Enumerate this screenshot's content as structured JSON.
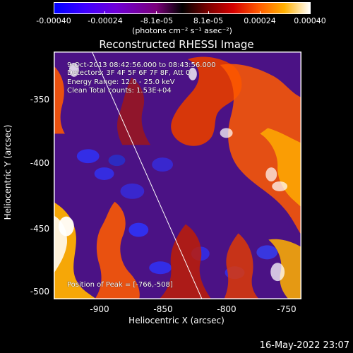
{
  "colorbar": {
    "labels": [
      "-0.00040",
      "-0.00024",
      "-8.1e-05",
      "8.1e-05",
      "0.00024",
      "0.00040"
    ],
    "units": "(photons cm⁻² s⁻¹ asec⁻²)"
  },
  "plot": {
    "title": "Reconstructed RHESSI Image",
    "time": "9-Oct-2013 08:42:56.000 to 08:43:56.000",
    "detectors": "Detectors: 3F 4F 5F 6F 7F 8F, Att 0",
    "energy": "Energy Range: 12.0 - 25.0 keV",
    "clean": "Clean    Total counts: 1.53E+04",
    "peak": "Position of Peak = [-766,-508]"
  },
  "axes": {
    "x_label": "Heliocentric X (arcsec)",
    "y_label": "Heliocentric Y (arcsec)",
    "x_ticks": [
      "-900",
      "-850",
      "-800",
      "-750"
    ],
    "y_ticks": [
      "-350",
      "-400",
      "-450",
      "-500"
    ]
  },
  "footer": {
    "timestamp": "16-May-2022 23:07"
  },
  "colors": {
    "background": "#000000",
    "foreground": "#ffffff",
    "image_base": "#3b0c6f",
    "hot_1": "#ff5a00",
    "hot_2": "#ffb000",
    "hot_3": "#ffffff",
    "cold_1": "#2d35ff"
  }
}
